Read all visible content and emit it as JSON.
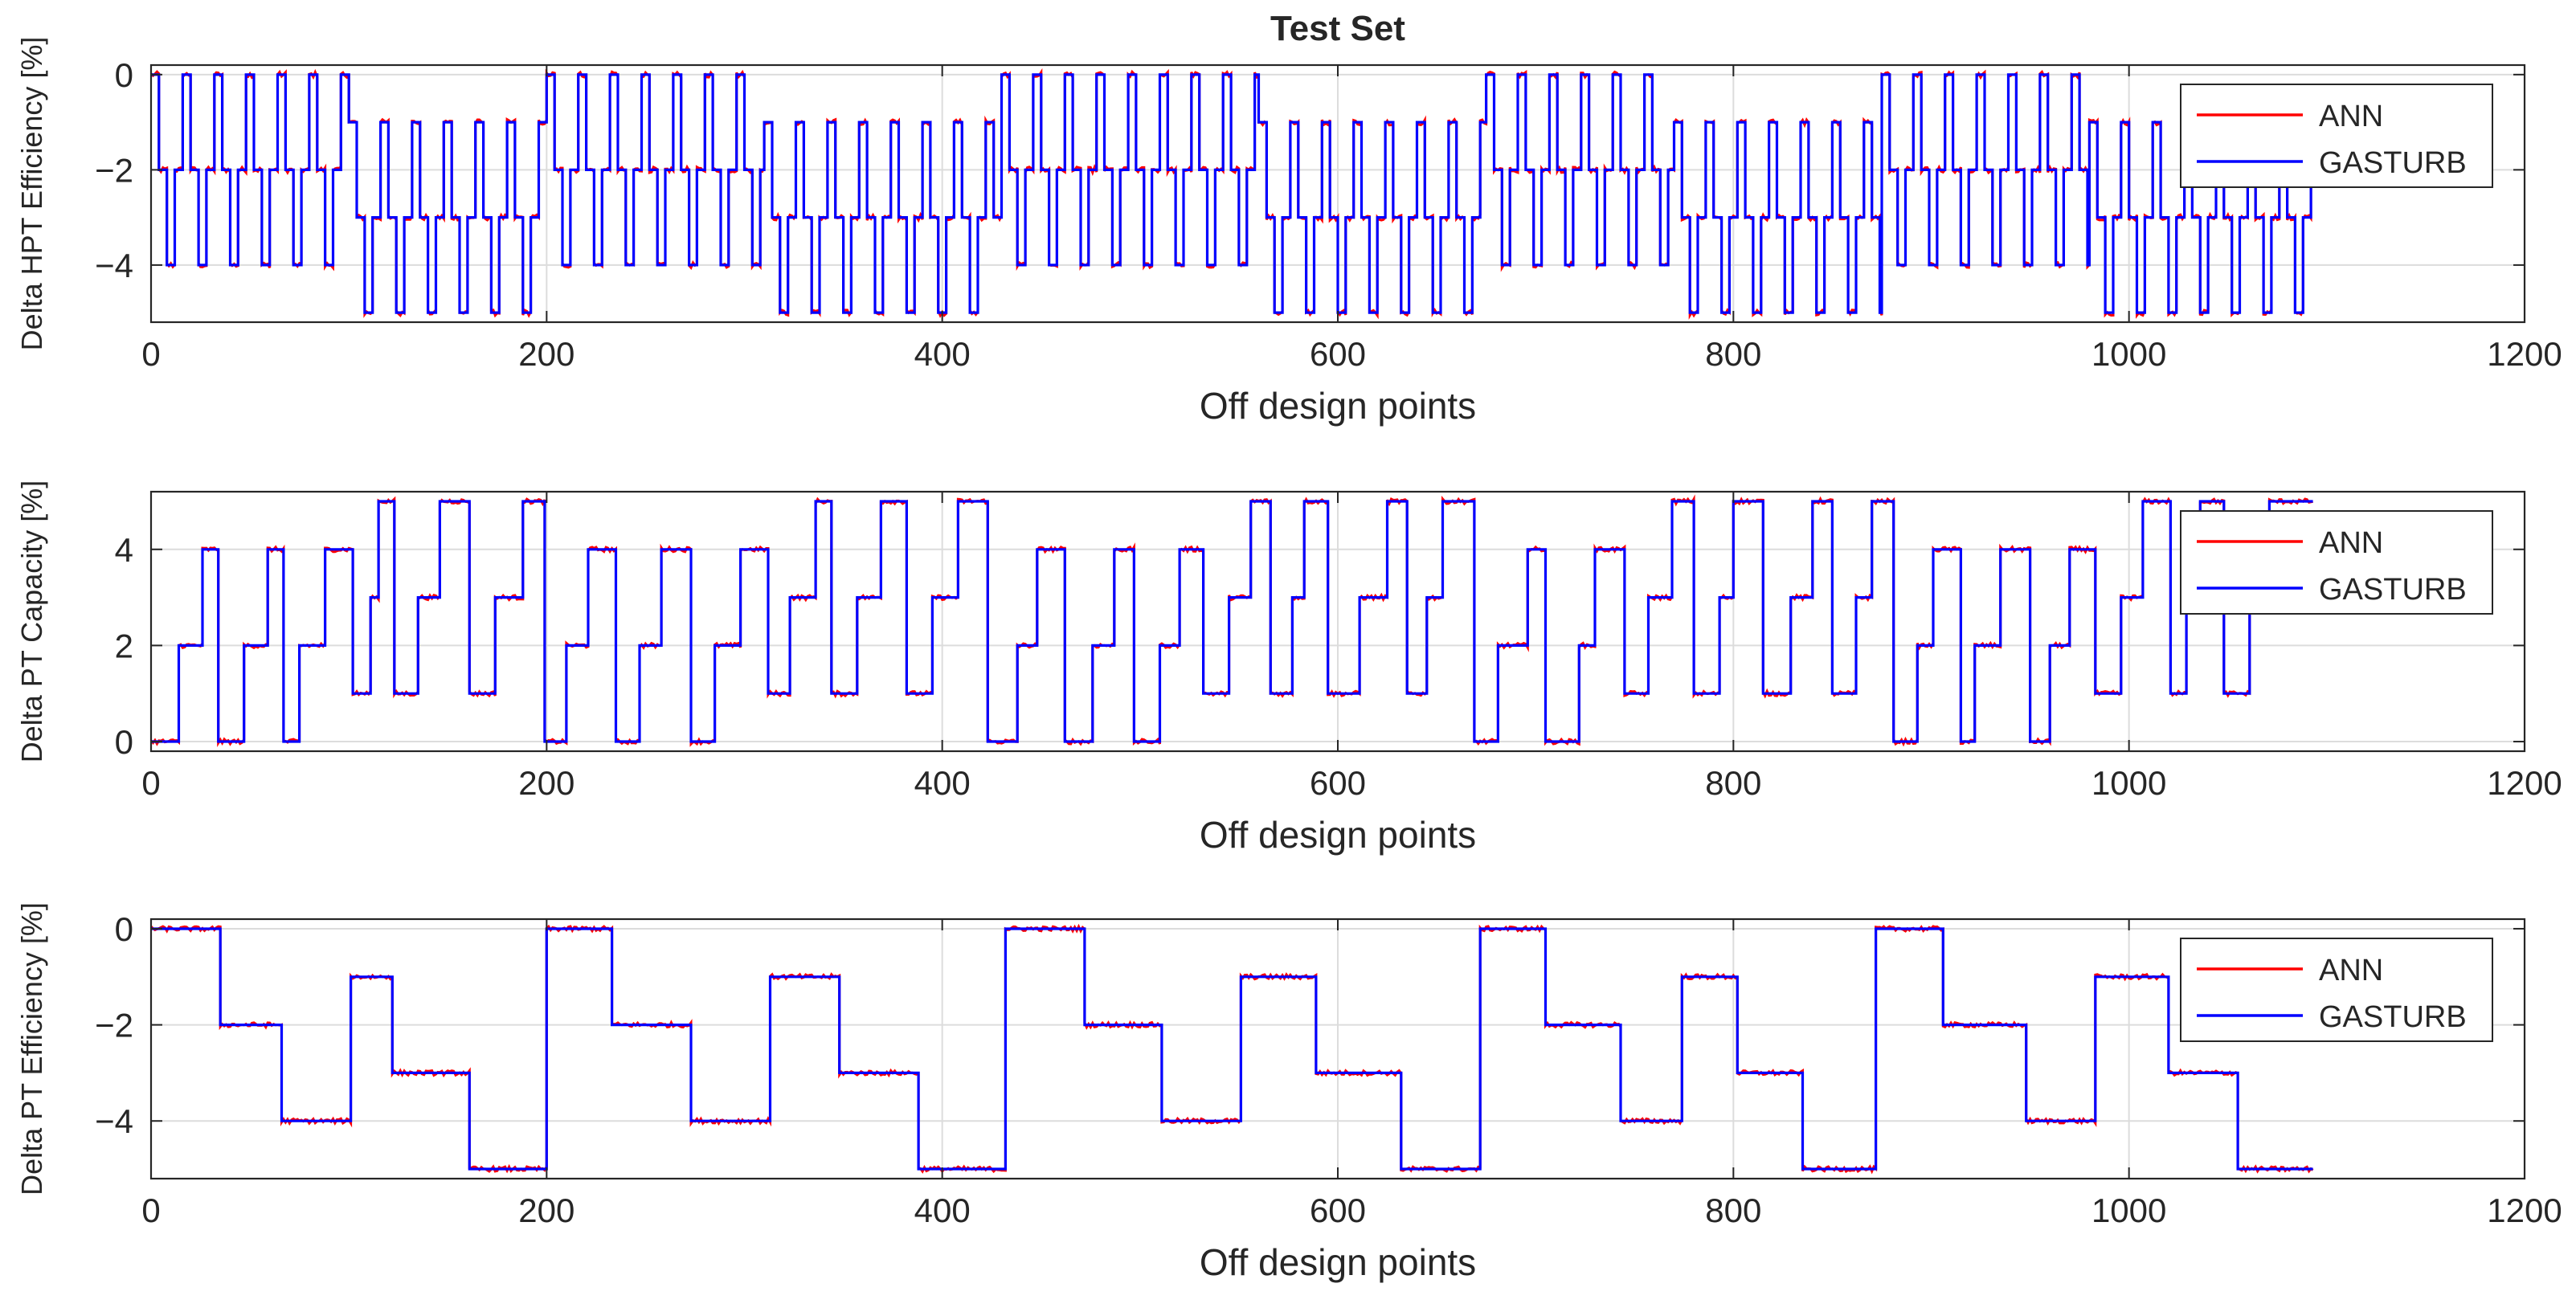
{
  "figure_title": "Test Set",
  "colors": {
    "ann": "#ff0000",
    "gasturb": "#0000ff",
    "grid": "#dcdcdc",
    "axis": "#262626"
  },
  "chart_data": [
    {
      "type": "line",
      "title": "Test Set",
      "xlabel": "Off design points",
      "ylabel": "Delta HPT Efficiency [%]",
      "xlim": [
        0,
        1200
      ],
      "ylim": [
        -5.2,
        0.2
      ],
      "xticks": [
        0,
        200,
        400,
        600,
        800,
        1000,
        1200
      ],
      "yticks": [
        -4,
        -2,
        0
      ],
      "ytick_labels": [
        "−4",
        "−2",
        "0"
      ],
      "grid": true,
      "legend": {
        "position": "top-right",
        "entries": [
          "ANN",
          "GASTURB"
        ]
      },
      "pattern": {
        "x_max": 1093,
        "step_points": 4,
        "blocks": [
          {
            "start": 0,
            "end": 100,
            "levels": [
              0,
              -2,
              -4
            ]
          },
          {
            "start": 100,
            "end": 200,
            "levels": [
              -1,
              -3,
              -5
            ]
          },
          {
            "start": 200,
            "end": 310,
            "levels": [
              0,
              -2,
              -4
            ]
          },
          {
            "start": 310,
            "end": 430,
            "levels": [
              -1,
              -3,
              -5
            ]
          },
          {
            "start": 430,
            "end": 560,
            "levels": [
              0,
              -2,
              -4
            ]
          },
          {
            "start": 560,
            "end": 675,
            "levels": [
              -1,
              -3,
              -5
            ]
          },
          {
            "start": 675,
            "end": 770,
            "levels": [
              0,
              -2,
              -4
            ]
          },
          {
            "start": 770,
            "end": 875,
            "levels": [
              -1,
              -3,
              -5
            ]
          },
          {
            "start": 875,
            "end": 980,
            "levels": [
              0,
              -2,
              -4
            ]
          },
          {
            "start": 980,
            "end": 1093,
            "levels": [
              -1,
              -3,
              -5
            ]
          }
        ]
      },
      "series": [
        {
          "name": "ANN",
          "color": "#ff0000",
          "noise": 0.06
        },
        {
          "name": "GASTURB",
          "color": "#0000ff",
          "noise": 0
        }
      ]
    },
    {
      "type": "line",
      "xlabel": "Off design points",
      "ylabel": "Delta PT Capacity [%]",
      "xlim": [
        0,
        1200
      ],
      "ylim": [
        -0.2,
        5.2
      ],
      "xticks": [
        0,
        200,
        400,
        600,
        800,
        1000,
        1200
      ],
      "yticks": [
        0,
        2,
        4
      ],
      "ytick_labels": [
        "0",
        "2",
        "4"
      ],
      "grid": true,
      "legend": {
        "position": "top-right",
        "entries": [
          "ANN",
          "GASTURB"
        ]
      },
      "segments": [
        [
          0,
          0
        ],
        [
          14,
          2
        ],
        [
          26,
          4
        ],
        [
          34,
          0
        ],
        [
          47,
          2
        ],
        [
          59,
          4
        ],
        [
          67,
          0
        ],
        [
          75,
          2
        ],
        [
          88,
          4
        ],
        [
          102,
          1
        ],
        [
          111,
          3
        ],
        [
          115,
          5
        ],
        [
          123,
          1
        ],
        [
          135,
          3
        ],
        [
          146,
          5
        ],
        [
          161,
          1
        ],
        [
          174,
          3
        ],
        [
          188,
          5
        ],
        [
          199,
          0
        ],
        [
          210,
          2
        ],
        [
          221,
          4
        ],
        [
          235,
          0
        ],
        [
          247,
          2
        ],
        [
          258,
          4
        ],
        [
          273,
          0
        ],
        [
          285,
          2
        ],
        [
          298,
          4
        ],
        [
          312,
          1
        ],
        [
          323,
          3
        ],
        [
          336,
          5
        ],
        [
          344,
          1
        ],
        [
          357,
          3
        ],
        [
          369,
          5
        ],
        [
          382,
          1
        ],
        [
          395,
          3
        ],
        [
          408,
          5
        ],
        [
          423,
          0
        ],
        [
          438,
          2
        ],
        [
          448,
          4
        ],
        [
          462,
          0
        ],
        [
          476,
          2
        ],
        [
          487,
          4
        ],
        [
          497,
          0
        ],
        [
          510,
          2
        ],
        [
          520,
          4
        ],
        [
          532,
          1
        ],
        [
          545,
          3
        ],
        [
          556,
          5
        ],
        [
          566,
          1
        ],
        [
          577,
          3
        ],
        [
          583,
          5
        ],
        [
          595,
          1
        ],
        [
          611,
          3
        ],
        [
          625,
          5
        ],
        [
          635,
          1
        ],
        [
          645,
          3
        ],
        [
          653,
          5
        ],
        [
          669,
          0
        ],
        [
          681,
          2
        ],
        [
          696,
          4
        ],
        [
          705,
          0
        ],
        [
          722,
          2
        ],
        [
          730,
          4
        ],
        [
          745,
          1
        ],
        [
          757,
          3
        ],
        [
          769,
          5
        ],
        [
          780,
          1
        ],
        [
          793,
          3
        ],
        [
          800,
          5
        ],
        [
          815,
          1
        ],
        [
          829,
          3
        ],
        [
          840,
          5
        ],
        [
          850,
          1
        ],
        [
          862,
          3
        ],
        [
          870,
          5
        ],
        [
          881,
          0
        ],
        [
          893,
          2
        ],
        [
          901,
          4
        ],
        [
          915,
          0
        ],
        [
          922,
          2
        ],
        [
          935,
          4
        ],
        [
          950,
          0
        ],
        [
          960,
          2
        ],
        [
          970,
          4
        ],
        [
          983,
          1
        ],
        [
          996,
          3
        ],
        [
          1007,
          5
        ],
        [
          1021,
          1
        ],
        [
          1029,
          3
        ],
        [
          1036,
          5
        ],
        [
          1048,
          1
        ],
        [
          1061,
          3
        ],
        [
          1071,
          5
        ],
        [
          1093,
          5
        ]
      ],
      "series": [
        {
          "name": "ANN",
          "color": "#ff0000",
          "noise": 0.05
        },
        {
          "name": "GASTURB",
          "color": "#0000ff",
          "noise": 0
        }
      ]
    },
    {
      "type": "line",
      "xlabel": "Off design points",
      "ylabel": "Delta PT Efficiency [%]",
      "xlim": [
        0,
        1200
      ],
      "ylim": [
        -5.2,
        0.2
      ],
      "xticks": [
        0,
        200,
        400,
        600,
        800,
        1000,
        1200
      ],
      "yticks": [
        -4,
        -2,
        0
      ],
      "ytick_labels": [
        "−4",
        "−2",
        "0"
      ],
      "grid": true,
      "legend": {
        "position": "top-right",
        "entries": [
          "ANN",
          "GASTURB"
        ]
      },
      "segments": [
        [
          0,
          0
        ],
        [
          35,
          -2
        ],
        [
          66,
          -4
        ],
        [
          101,
          -1
        ],
        [
          122,
          -3
        ],
        [
          161,
          -5
        ],
        [
          200,
          0
        ],
        [
          233,
          -2
        ],
        [
          273,
          -4
        ],
        [
          313,
          -1
        ],
        [
          348,
          -3
        ],
        [
          388,
          -5
        ],
        [
          432,
          0
        ],
        [
          472,
          -2
        ],
        [
          511,
          -4
        ],
        [
          551,
          -1
        ],
        [
          589,
          -3
        ],
        [
          632,
          -5
        ],
        [
          672,
          0
        ],
        [
          705,
          -2
        ],
        [
          743,
          -4
        ],
        [
          774,
          -1
        ],
        [
          802,
          -3
        ],
        [
          835,
          -5
        ],
        [
          872,
          0
        ],
        [
          906,
          -2
        ],
        [
          948,
          -4
        ],
        [
          983,
          -1
        ],
        [
          1020,
          -3
        ],
        [
          1055,
          -5
        ],
        [
          1093,
          -5
        ]
      ],
      "series": [
        {
          "name": "ANN",
          "color": "#ff0000",
          "noise": 0.05
        },
        {
          "name": "GASTURB",
          "color": "#0000ff",
          "noise": 0
        }
      ]
    }
  ]
}
